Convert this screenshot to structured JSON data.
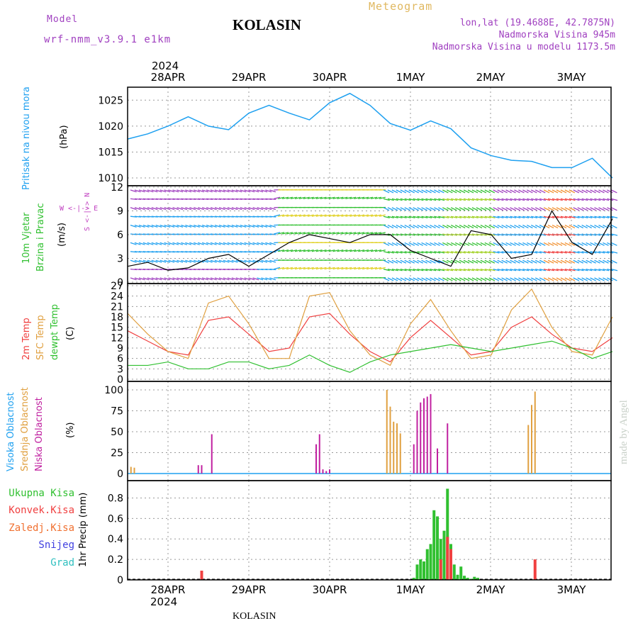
{
  "header": {
    "model_label": "Model",
    "model_name": "wrf-nmm_v3.9.1  e1km",
    "station": "KOLASIN",
    "meteogram": "Meteogram",
    "lonlat": "lon,lat (19.4688E, 42.7875N)",
    "elevation": "Nadmorska Visina 945m",
    "model_elevation": "Nadmorska Visina u modelu 1173.5m",
    "year": "2024",
    "footer_station": "KOLASIN",
    "watermark": "made by Angel"
  },
  "colors": {
    "cyan": "#1ea0f0",
    "green": "#30c030",
    "orange": "#e0a040",
    "red": "#f04040",
    "magenta": "#c020a0",
    "purple": "#a040c0",
    "blue": "#4040e0",
    "grad": "#30c0c0"
  },
  "day_labels": [
    "28APR",
    "29APR",
    "30APR",
    "1MAY",
    "2MAY",
    "3MAY"
  ],
  "panels": {
    "pressure": {
      "label": "Pritisak na nivou mora",
      "unit": "(hPa)",
      "yticks": [
        "1025",
        "1020",
        "1015",
        "1010"
      ]
    },
    "wind": {
      "label1": "10m Vjetar",
      "label2": "Brzina i Pravac",
      "unit": "(m/s)",
      "yticks": [
        "12",
        "9",
        "6",
        "3",
        "0"
      ],
      "compass": "W <-|-> E",
      "compass_v": "S <-|-> N"
    },
    "temp": {
      "label1": "2m Temp",
      "label2": "SFC Temp",
      "label3": "dewpt Temp",
      "unit": "(C)",
      "yticks": [
        "27",
        "24",
        "21",
        "18",
        "15",
        "12",
        "9",
        "6",
        "3",
        "0"
      ]
    },
    "cloud": {
      "label1": "Visoka Oblacnost",
      "label2": "Srednja Oblacnost",
      "label3": "Niska Oblacnost",
      "unit": "(%)",
      "yticks": [
        "100",
        "75",
        "50",
        "25",
        "0"
      ]
    },
    "precip": {
      "legend": [
        "Ukupna Kisa",
        "Konvek.Kisa",
        "Zaledj.Kisa",
        "Snijeg",
        "Grad"
      ],
      "unit": "1hr Precip (mm)",
      "yticks": [
        "0.8",
        "0.6",
        "0.4",
        "0.2",
        "0"
      ]
    }
  },
  "chart_data": [
    {
      "type": "line",
      "title": "Pritisak na nivou mora",
      "ylabel": "(hPa)",
      "ylim": [
        1008.5,
        1027.5
      ],
      "x": [
        "27APR12",
        "27APR18",
        "28APR00",
        "28APR06",
        "28APR12",
        "28APR18",
        "29APR00",
        "29APR06",
        "29APR12",
        "29APR18",
        "30APR00",
        "30APR06",
        "30APR12",
        "30APR18",
        "1MAY00",
        "1MAY06",
        "1MAY12",
        "1MAY18",
        "2MAY00",
        "2MAY06",
        "2MAY12",
        "2MAY18",
        "3MAY00",
        "3MAY06",
        "3MAY12"
      ],
      "series": [
        {
          "values": [
            1017.5,
            1018.5,
            1020,
            1021.8,
            1020,
            1019.3,
            1022.5,
            1024,
            1022.5,
            1021.2,
            1024.5,
            1026.3,
            1024,
            1020.5,
            1019.2,
            1021,
            1019.5,
            1015.8,
            1014.3,
            1013.4,
            1013.2,
            1012,
            1012,
            1013.8,
            1010
          ]
        }
      ]
    },
    {
      "type": "line",
      "title": "10m Vjetar",
      "ylabel": "(m/s)",
      "ylim": [
        0,
        12
      ],
      "x": [
        "27APR12",
        "27APR18",
        "28APR00",
        "28APR06",
        "28APR12",
        "28APR18",
        "29APR00",
        "29APR06",
        "29APR12",
        "29APR18",
        "30APR00",
        "30APR06",
        "30APR12",
        "30APR18",
        "1MAY00",
        "1MAY06",
        "1MAY12",
        "1MAY18",
        "2MAY00",
        "2MAY06",
        "2MAY12",
        "2MAY18",
        "3MAY00",
        "3MAY06",
        "3MAY12"
      ],
      "series": [
        {
          "values": [
            2,
            2.5,
            1.5,
            1.8,
            3,
            3.5,
            2,
            3.5,
            5,
            6,
            5.5,
            5,
            6,
            6,
            4,
            3,
            2,
            6.5,
            6,
            3,
            3.5,
            9,
            5,
            3.5,
            8
          ]
        }
      ]
    },
    {
      "type": "line",
      "title": "Temp",
      "ylabel": "(C)",
      "ylim": [
        0,
        27
      ],
      "x": [
        "27APR12",
        "27APR18",
        "28APR00",
        "28APR06",
        "28APR12",
        "28APR18",
        "29APR00",
        "29APR06",
        "29APR12",
        "29APR18",
        "30APR00",
        "30APR06",
        "30APR12",
        "30APR18",
        "1MAY00",
        "1MAY06",
        "1MAY12",
        "1MAY18",
        "2MAY00",
        "2MAY06",
        "2MAY12",
        "2MAY18",
        "3MAY00",
        "3MAY06",
        "3MAY12"
      ],
      "series": [
        {
          "name": "2m Temp",
          "values": [
            14,
            11,
            8,
            7,
            17,
            18,
            13,
            8,
            9,
            18,
            19,
            13,
            8,
            5,
            12,
            17,
            12,
            7,
            8,
            15,
            18,
            13,
            9,
            8,
            12
          ]
        },
        {
          "name": "SFC Temp",
          "values": [
            19,
            13,
            8,
            6,
            22,
            24,
            16,
            6,
            6,
            24,
            25,
            14,
            7,
            4,
            16,
            23,
            14,
            6,
            7,
            20,
            26,
            15,
            8,
            7,
            18
          ]
        },
        {
          "name": "dewpt Temp",
          "values": [
            4,
            4,
            5,
            3,
            3,
            5,
            5,
            3,
            4,
            7,
            4,
            2,
            5,
            7,
            8,
            9,
            10,
            9,
            8,
            9,
            10,
            11,
            9,
            6,
            8
          ]
        }
      ]
    },
    {
      "type": "bar",
      "title": "Oblacnost",
      "ylabel": "(%)",
      "ylim": [
        0,
        100
      ],
      "series": [
        {
          "name": "Niska Oblacnost",
          "x": [
            1,
            21,
            22,
            25,
            56,
            57,
            58,
            59,
            60,
            85,
            86,
            87,
            88,
            89,
            90,
            92,
            95
          ],
          "values": [
            0,
            10,
            10,
            47,
            35,
            47,
            5,
            3,
            5,
            35,
            75,
            85,
            90,
            92,
            95,
            30,
            60
          ]
        },
        {
          "name": "Srednja Oblacnost",
          "x": [
            1,
            2,
            77,
            78,
            79,
            80,
            81,
            119,
            120,
            121
          ],
          "values": [
            8,
            7,
            100,
            80,
            62,
            60,
            48,
            58,
            82,
            98
          ]
        }
      ]
    },
    {
      "type": "bar",
      "title": "1hr Precip",
      "ylabel": "(mm)",
      "ylim": [
        0,
        0.9
      ],
      "series": [
        {
          "name": "Ukupna Kisa",
          "x": [
            85,
            86,
            87,
            88,
            89,
            90,
            91,
            92,
            93,
            94,
            95,
            96,
            97,
            98,
            99,
            100,
            101,
            102,
            103,
            104
          ],
          "values": [
            0.02,
            0.15,
            0.2,
            0.18,
            0.3,
            0.35,
            0.68,
            0.62,
            0.4,
            0.48,
            0.89,
            0.35,
            0.15,
            0.05,
            0.13,
            0.04,
            0.02,
            0.01,
            0.03,
            0.02
          ]
        },
        {
          "name": "Konvek.Kisa",
          "x": [
            22,
            93,
            95,
            96,
            121
          ],
          "values": [
            0.09,
            0.2,
            0.42,
            0.3,
            0.2
          ]
        }
      ]
    }
  ]
}
